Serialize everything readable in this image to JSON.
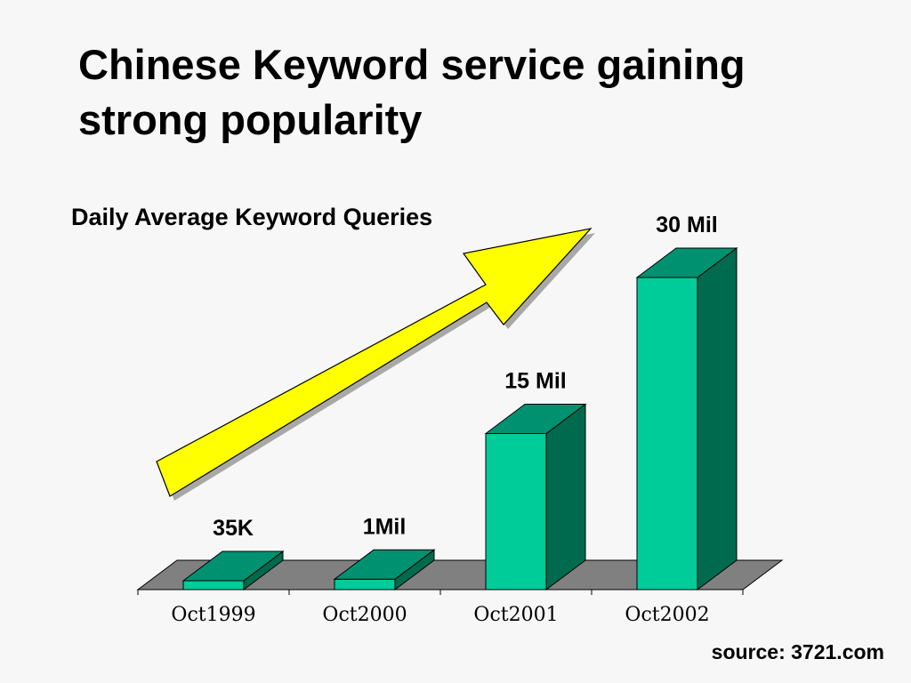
{
  "slide": {
    "title": "Chinese Keyword service gaining strong popularity",
    "source": "source: 3721.com"
  },
  "chart_data": {
    "type": "bar",
    "title": "Daily Average Keyword Queries",
    "categories": [
      "Oct1999",
      "Oct2000",
      "Oct2001",
      "Oct2002"
    ],
    "values": [
      35000,
      1000000,
      15000000,
      30000000
    ],
    "data_labels": [
      "35K",
      "1Mil",
      "15 Mil",
      "30 Mil"
    ],
    "ylim": [
      0,
      30000000
    ],
    "grid": false,
    "style": "3d-column",
    "annotation": "yellow upward arrow indicating growth"
  },
  "colors": {
    "background": "#f7f7f7",
    "bar_front": "#00cc99",
    "bar_top": "#009270",
    "bar_side": "#006a4e",
    "floor": "#808080",
    "arrow_fill": "#ffff00",
    "arrow_shadow": "#a8a8a8"
  }
}
